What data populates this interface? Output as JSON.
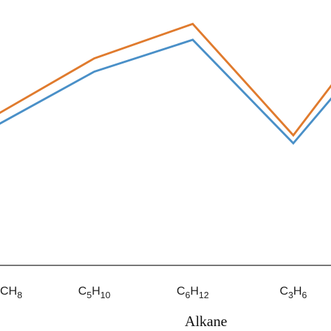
{
  "chart_data": {
    "type": "line",
    "title": "",
    "xlabel": "Alkane",
    "ylabel": "",
    "categories": [
      {
        "base": "C",
        "sub1": "",
        "mid": "H",
        "sub2": "8"
      },
      {
        "base": "C",
        "sub1": "5",
        "mid": "H",
        "sub2": "10"
      },
      {
        "base": "C",
        "sub1": "6",
        "mid": "H",
        "sub2": "12"
      },
      {
        "base": "C",
        "sub1": "3",
        "mid": "H",
        "sub2": "6"
      },
      {
        "base": "",
        "sub1": "",
        "mid": "",
        "sub2": ""
      }
    ],
    "ylim": [
      0,
      100
    ],
    "grid": false,
    "series": [
      {
        "color": "#E07B2E",
        "values": [
          56,
          78,
          91,
          49,
          69
        ]
      },
      {
        "color": "#4A90C8",
        "values": [
          52,
          73,
          85,
          46,
          64
        ]
      }
    ]
  }
}
